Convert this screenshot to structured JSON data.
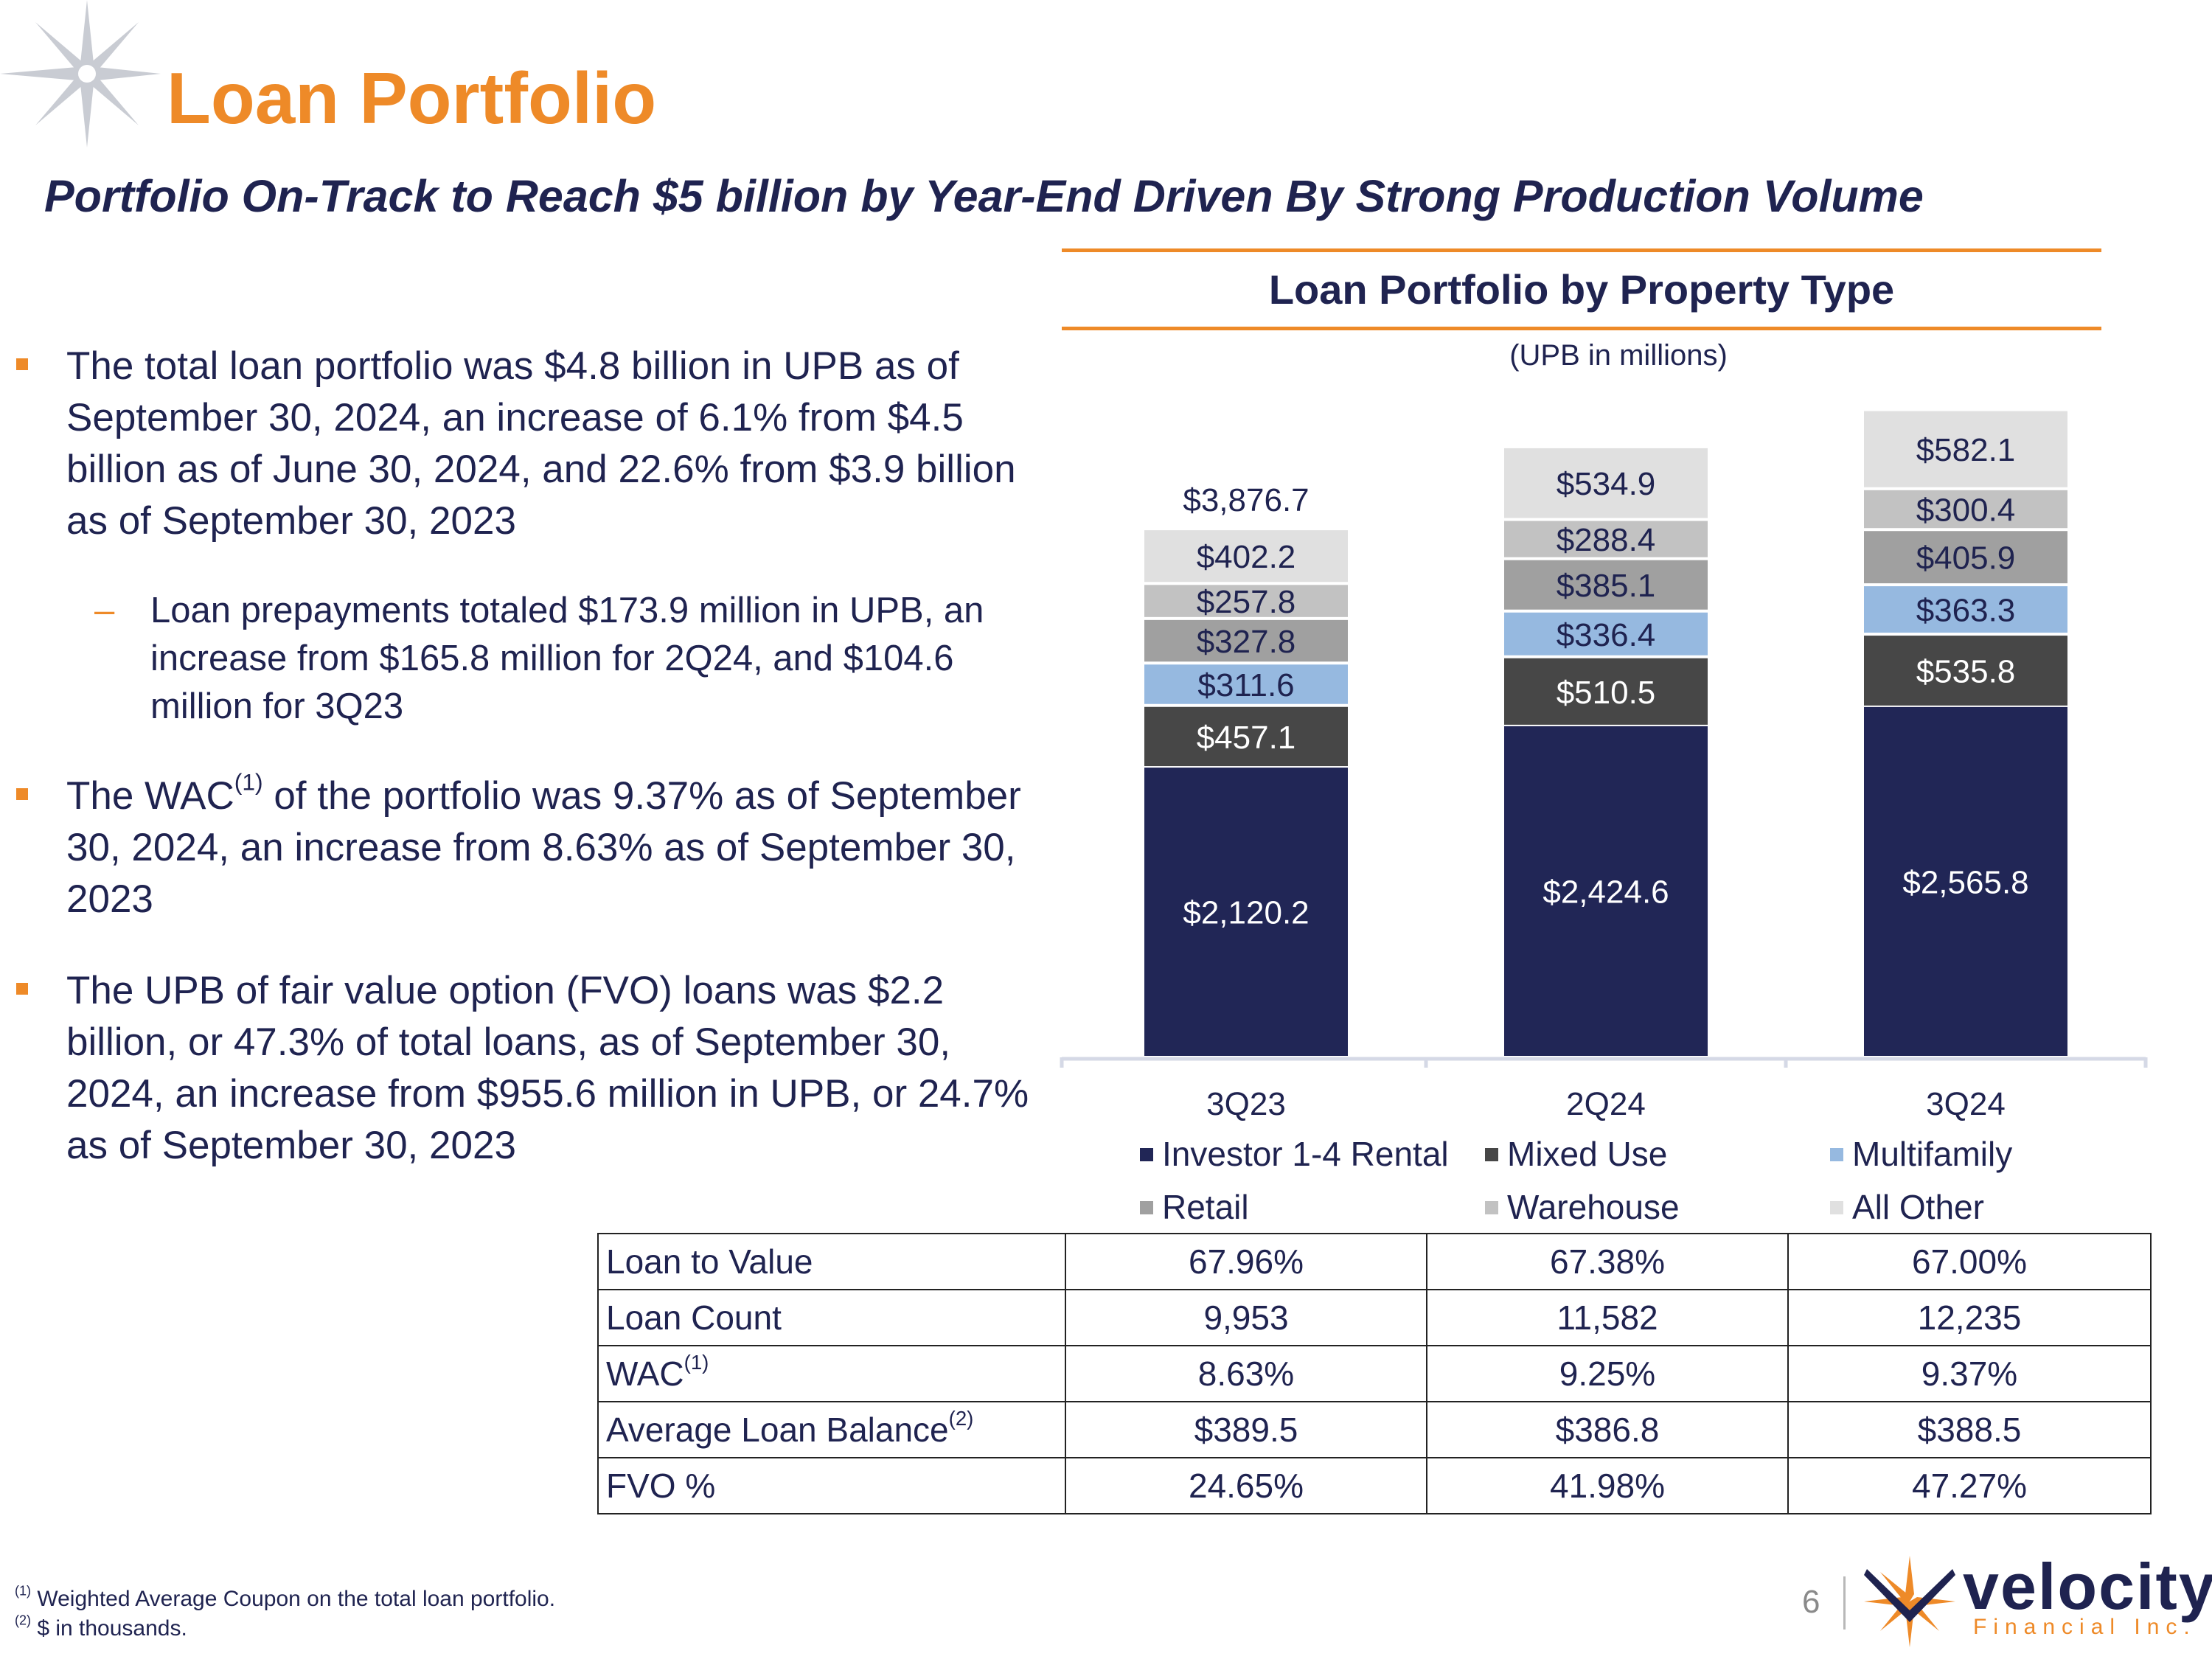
{
  "header": {
    "title": "Loan Portfolio",
    "subtitle": "Portfolio On-Track to Reach $5 billion by Year-End Driven By Strong Production Volume"
  },
  "bullets": [
    {
      "text": "The total loan portfolio was $4.8 billion in UPB as of September 30, 2024, an increase of 6.1% from $4.5 billion as of June 30, 2024, and 22.6% from $3.9 billion as of September 30, 2023"
    },
    {
      "sub_text": "Loan prepayments totaled $173.9 million in UPB, an increase from $165.8 million for 2Q24, and $104.6 million for 3Q23"
    },
    {
      "pre": "The WAC",
      "sup": "(1)",
      "post": " of the portfolio was 9.37% as of September 30, 2024, an increase from 8.63% as of September 30, 2023"
    },
    {
      "text": "The UPB of fair value option (FVO) loans was $2.2 billion, or 47.3% of total loans, as of September 30, 2024, an increase from $955.6 million in UPB, or 24.7% as of September 30, 2023"
    }
  ],
  "chart_data": {
    "type": "bar",
    "stacked": true,
    "title": "Loan Portfolio by Property Type",
    "subtitle": "(UPB in millions)",
    "categories": [
      "3Q23",
      "2Q24",
      "3Q24"
    ],
    "series": [
      {
        "name": "Investor 1-4 Rental",
        "color": "#212656",
        "values": [
          2120.2,
          2424.6,
          2565.8
        ],
        "labels": [
          "$2,120.2",
          "$2,424.6",
          "$2,565.8"
        ]
      },
      {
        "name": "Mixed Use",
        "color": "#474747",
        "values": [
          457.1,
          510.5,
          535.8
        ],
        "labels": [
          "$457.1",
          "$510.5",
          "$535.8"
        ]
      },
      {
        "name": "Multifamily",
        "color": "#96b9e0",
        "values": [
          311.6,
          336.4,
          363.3
        ],
        "labels": [
          "$311.6",
          "$336.4",
          "$363.3"
        ]
      },
      {
        "name": "Retail",
        "color": "#a0a0a0",
        "values": [
          327.8,
          385.1,
          405.9
        ],
        "labels": [
          "$327.8",
          "$385.1",
          "$405.9"
        ]
      },
      {
        "name": "Warehouse",
        "color": "#c2c2c2",
        "values": [
          257.8,
          288.4,
          300.4
        ],
        "labels": [
          "$257.8",
          "$288.4",
          "$300.4"
        ]
      },
      {
        "name": "All Other",
        "color": "#e0e0e0",
        "values": [
          402.2,
          534.9,
          582.1
        ],
        "labels": [
          "$402.2",
          "$534.9",
          "$582.1"
        ]
      }
    ],
    "totals": [
      "$3,876.7",
      "",
      ""
    ],
    "ylim": [
      0,
      5000
    ],
    "legend_position": "bottom",
    "grid": false
  },
  "table": {
    "rows": [
      {
        "label": "Loan to Value",
        "sup": "",
        "values": [
          "67.96%",
          "67.38%",
          "67.00%"
        ]
      },
      {
        "label": "Loan Count",
        "sup": "",
        "values": [
          "9,953",
          "11,582",
          "12,235"
        ]
      },
      {
        "label": "WAC",
        "sup": "(1)",
        "values": [
          "8.63%",
          "9.25%",
          "9.37%"
        ]
      },
      {
        "label": "Average Loan Balance",
        "sup": "(2)",
        "values": [
          "$389.5",
          "$386.8",
          "$388.5"
        ]
      },
      {
        "label": "FVO %",
        "sup": "",
        "values": [
          "24.65%",
          "41.98%",
          "47.27%"
        ]
      }
    ]
  },
  "footnotes": [
    {
      "mark": "(1)",
      "text": " Weighted Average Coupon on the total loan portfolio."
    },
    {
      "mark": "(2)",
      "text": " $ in thousands."
    }
  ],
  "footer": {
    "page_number": "6",
    "brand_name": "velocity",
    "brand_subtitle": "Financial Inc."
  },
  "colors": {
    "accent": "#ee8a28",
    "navy": "#1f2350"
  }
}
